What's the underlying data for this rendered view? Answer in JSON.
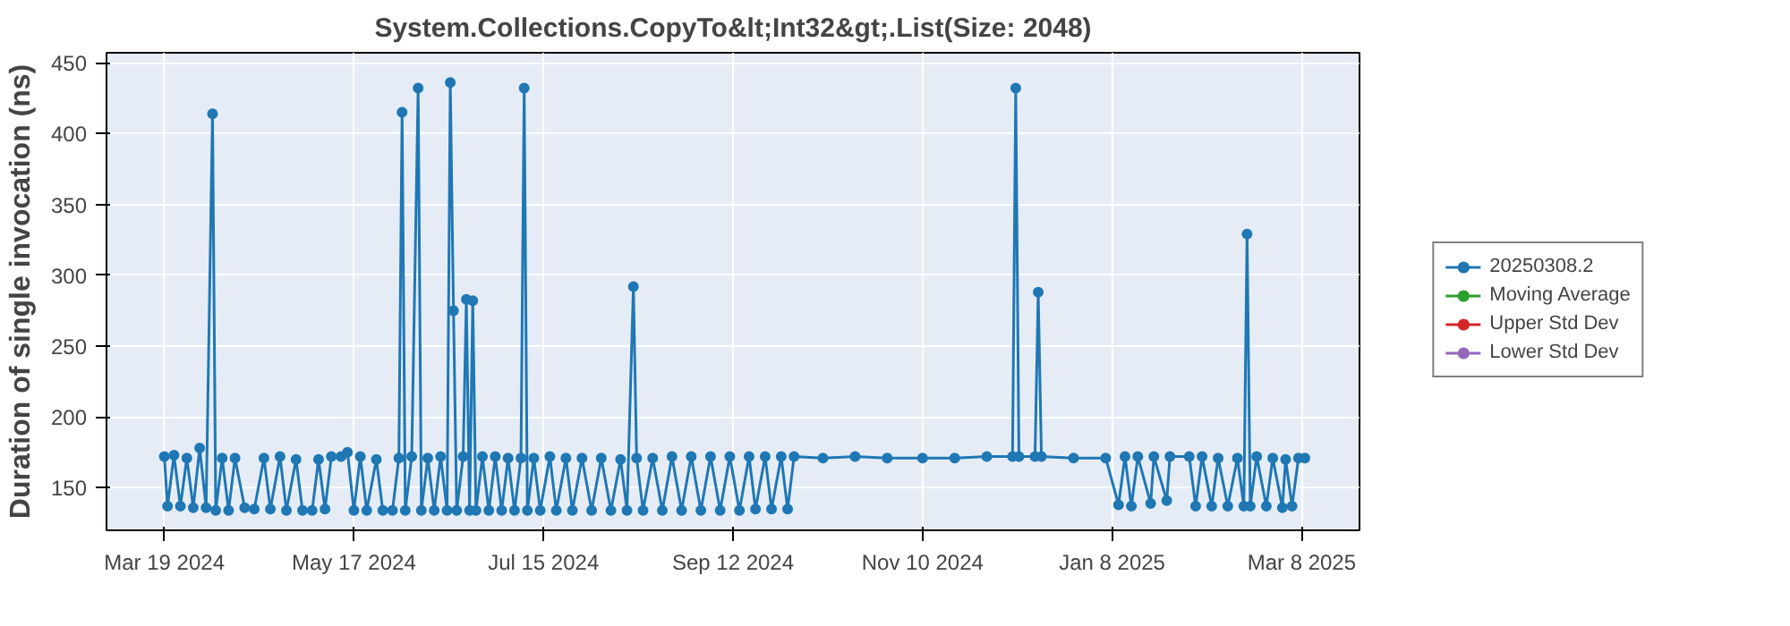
{
  "chart_data": {
    "type": "line",
    "title": "System.Collections.CopyTo&lt;Int32&gt;.List(Size: 2048)",
    "ylabel": "Duration of single invocation (ns)",
    "x": [
      "2024-03-19",
      "2024-03-20",
      "2024-03-22",
      "2024-03-24",
      "2024-03-26",
      "2024-03-28",
      "2024-03-30",
      "2024-04-01",
      "2024-04-03",
      "2024-04-04",
      "2024-04-06",
      "2024-04-08",
      "2024-04-10",
      "2024-04-13",
      "2024-04-16",
      "2024-04-19",
      "2024-04-21",
      "2024-04-24",
      "2024-04-26",
      "2024-04-29",
      "2024-05-01",
      "2024-05-04",
      "2024-05-06",
      "2024-05-08",
      "2024-05-10",
      "2024-05-13",
      "2024-05-15",
      "2024-05-17",
      "2024-05-19",
      "2024-05-21",
      "2024-05-24",
      "2024-05-26",
      "2024-05-29",
      "2024-05-31",
      "2024-06-01",
      "2024-06-02",
      "2024-06-04",
      "2024-06-06",
      "2024-06-07",
      "2024-06-09",
      "2024-06-11",
      "2024-06-13",
      "2024-06-15",
      "2024-06-16",
      "2024-06-17",
      "2024-06-18",
      "2024-06-20",
      "2024-06-21",
      "2024-06-22",
      "2024-06-23",
      "2024-06-24",
      "2024-06-26",
      "2024-06-28",
      "2024-06-30",
      "2024-07-02",
      "2024-07-04",
      "2024-07-06",
      "2024-07-08",
      "2024-07-09",
      "2024-07-10",
      "2024-07-12",
      "2024-07-14",
      "2024-07-17",
      "2024-07-19",
      "2024-07-22",
      "2024-07-24",
      "2024-07-27",
      "2024-07-30",
      "2024-08-02",
      "2024-08-05",
      "2024-08-08",
      "2024-08-10",
      "2024-08-12",
      "2024-08-13",
      "2024-08-15",
      "2024-08-18",
      "2024-08-21",
      "2024-08-24",
      "2024-08-27",
      "2024-08-30",
      "2024-09-02",
      "2024-09-05",
      "2024-09-08",
      "2024-09-11",
      "2024-09-14",
      "2024-09-17",
      "2024-09-19",
      "2024-09-22",
      "2024-09-24",
      "2024-09-27",
      "2024-09-29",
      "2024-10-01",
      "2024-10-10",
      "2024-10-20",
      "2024-10-30",
      "2024-11-10",
      "2024-11-20",
      "2024-11-30",
      "2024-12-08",
      "2024-12-09",
      "2024-12-10",
      "2024-12-15",
      "2024-12-16",
      "2024-12-17",
      "2024-12-27",
      "2025-01-06",
      "2025-01-10",
      "2025-01-12",
      "2025-01-14",
      "2025-01-16",
      "2025-01-20",
      "2025-01-21",
      "2025-01-25",
      "2025-01-26",
      "2025-02-01",
      "2025-02-03",
      "2025-02-05",
      "2025-02-08",
      "2025-02-10",
      "2025-02-13",
      "2025-02-16",
      "2025-02-18",
      "2025-02-19",
      "2025-02-20",
      "2025-02-22",
      "2025-02-25",
      "2025-02-27",
      "2025-03-02",
      "2025-03-03",
      "2025-03-05",
      "2025-03-07",
      "2025-03-09"
    ],
    "series": [
      {
        "name": "20250308.2",
        "color": "#1f77b4",
        "values": [
          172,
          137,
          173,
          137,
          171,
          136,
          178,
          136,
          414,
          134,
          171,
          134,
          171,
          136,
          135,
          171,
          135,
          172,
          134,
          170,
          134,
          134,
          170,
          135,
          172,
          172,
          175,
          134,
          172,
          134,
          170,
          134,
          134,
          171,
          415,
          134,
          172,
          432,
          134,
          171,
          134,
          172,
          134,
          436,
          275,
          134,
          172,
          283,
          134,
          282,
          134,
          172,
          134,
          172,
          134,
          171,
          134,
          171,
          432,
          134,
          171,
          134,
          172,
          134,
          171,
          134,
          171,
          134,
          171,
          134,
          170,
          134,
          292,
          171,
          134,
          171,
          134,
          172,
          134,
          172,
          134,
          172,
          134,
          172,
          134,
          172,
          135,
          172,
          135,
          172,
          135,
          172,
          171,
          172,
          171,
          171,
          171,
          172,
          172,
          432,
          172,
          172,
          288,
          172,
          171,
          171,
          138,
          172,
          137,
          172,
          139,
          172,
          141,
          172,
          172,
          137,
          172,
          137,
          171,
          137,
          171,
          137,
          329,
          137,
          172,
          137,
          171,
          136,
          170,
          137,
          171,
          171
        ]
      },
      {
        "name": "Moving Average",
        "color": "#2ca02c",
        "values": [
          null,
          null,
          null,
          null,
          null,
          null,
          null,
          null,
          null,
          null,
          null,
          null,
          null,
          null,
          null,
          null,
          null,
          null,
          null,
          null,
          null,
          null,
          null,
          null,
          null,
          null,
          null,
          null,
          null,
          null,
          null,
          null,
          null,
          null,
          null,
          null,
          null,
          null,
          null,
          null,
          null,
          null,
          null,
          null,
          null,
          null,
          null,
          null,
          null,
          null,
          null,
          null,
          null,
          null,
          null,
          null,
          null,
          null,
          null,
          null,
          null,
          null,
          null,
          null,
          null,
          null,
          null,
          null,
          null,
          null,
          null,
          null,
          null,
          null,
          null,
          null,
          null,
          null,
          null,
          null,
          null,
          null,
          null,
          null,
          null,
          null,
          null,
          null,
          null,
          null,
          null,
          null,
          null,
          null,
          null,
          null,
          null,
          null,
          null,
          null,
          null,
          null,
          null,
          null,
          null,
          null,
          null,
          null,
          null,
          null,
          null,
          null,
          null,
          null,
          null,
          null,
          null,
          null,
          null,
          null,
          null,
          null,
          null,
          null,
          null,
          null,
          null,
          null,
          null,
          null,
          null,
          null
        ]
      },
      {
        "name": "Upper Std Dev",
        "color": "#d62728",
        "values": [
          null,
          null,
          null,
          null,
          null,
          null,
          null,
          null,
          null,
          null,
          null,
          null,
          null,
          null,
          null,
          null,
          null,
          null,
          null,
          null,
          null,
          null,
          null,
          null,
          null,
          null,
          null,
          null,
          null,
          null,
          null,
          null,
          null,
          null,
          null,
          null,
          null,
          null,
          null,
          null,
          null,
          null,
          null,
          null,
          null,
          null,
          null,
          null,
          null,
          null,
          null,
          null,
          null,
          null,
          null,
          null,
          null,
          null,
          null,
          null,
          null,
          null,
          null,
          null,
          null,
          null,
          null,
          null,
          null,
          null,
          null,
          null,
          null,
          null,
          null,
          null,
          null,
          null,
          null,
          null,
          null,
          null,
          null,
          null,
          null,
          null,
          null,
          null,
          null,
          null,
          null,
          null,
          null,
          null,
          null,
          null,
          null,
          null,
          null,
          null,
          null,
          null,
          null,
          null,
          null,
          null,
          null,
          null,
          null,
          null,
          null,
          null,
          null,
          null,
          null,
          null,
          null,
          null,
          null,
          null,
          null,
          null,
          null,
          null,
          null,
          null,
          null,
          null,
          null,
          null,
          null,
          null
        ]
      },
      {
        "name": "Lower Std Dev",
        "color": "#9467bd",
        "values": [
          null,
          null,
          null,
          null,
          null,
          null,
          null,
          null,
          null,
          null,
          null,
          null,
          null,
          null,
          null,
          null,
          null,
          null,
          null,
          null,
          null,
          null,
          null,
          null,
          null,
          null,
          null,
          null,
          null,
          null,
          null,
          null,
          null,
          null,
          null,
          null,
          null,
          null,
          null,
          null,
          null,
          null,
          null,
          null,
          null,
          null,
          null,
          null,
          null,
          null,
          null,
          null,
          null,
          null,
          null,
          null,
          null,
          null,
          null,
          null,
          null,
          null,
          null,
          null,
          null,
          null,
          null,
          null,
          null,
          null,
          null,
          null,
          null,
          null,
          null,
          null,
          null,
          null,
          null,
          null,
          null,
          null,
          null,
          null,
          null,
          null,
          null,
          null,
          null,
          null,
          null,
          null,
          null,
          null,
          null,
          null,
          null,
          null,
          null,
          null,
          null,
          null,
          null,
          null,
          null,
          null,
          null,
          null,
          null,
          null,
          null,
          null,
          null,
          null,
          null,
          null,
          null,
          null,
          null,
          null,
          null,
          null,
          null,
          null,
          null,
          null,
          null,
          null,
          null,
          null,
          null,
          null
        ]
      }
    ],
    "xlim": [
      "2024-03-01",
      "2025-03-26"
    ],
    "xticks": [
      {
        "value": "2024-03-19",
        "label": "Mar 19 2024"
      },
      {
        "value": "2024-05-17",
        "label": "May 17 2024"
      },
      {
        "value": "2024-07-15",
        "label": "Jul 15 2024"
      },
      {
        "value": "2024-09-12",
        "label": "Sep 12 2024"
      },
      {
        "value": "2024-11-10",
        "label": "Nov 10 2024"
      },
      {
        "value": "2025-01-08",
        "label": "Jan 8 2025"
      },
      {
        "value": "2025-03-08",
        "label": "Mar 8 2025"
      }
    ],
    "ylim": [
      120,
      457
    ],
    "yticks": [
      150,
      200,
      250,
      300,
      350,
      400,
      450
    ],
    "grid": true,
    "legend": "right",
    "marker": "circle",
    "line_style": "solid"
  }
}
